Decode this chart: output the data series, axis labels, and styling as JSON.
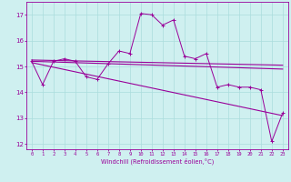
{
  "xlabel": "Windchill (Refroidissement éolien,°C)",
  "bg_color": "#cff0f0",
  "line_color": "#990099",
  "grid_color": "#aadddd",
  "xlim": [
    -0.5,
    23.5
  ],
  "ylim": [
    11.8,
    17.5
  ],
  "yticks": [
    12,
    13,
    14,
    15,
    16,
    17
  ],
  "xticks": [
    0,
    1,
    2,
    3,
    4,
    5,
    6,
    7,
    8,
    9,
    10,
    11,
    12,
    13,
    14,
    15,
    16,
    17,
    18,
    19,
    20,
    21,
    22,
    23
  ],
  "series1": [
    15.2,
    14.3,
    15.2,
    15.3,
    15.2,
    14.6,
    14.5,
    15.1,
    15.6,
    15.5,
    17.05,
    17.0,
    16.6,
    16.8,
    15.4,
    15.3,
    15.5,
    14.2,
    14.3,
    14.2,
    14.2,
    14.1,
    12.1,
    13.2
  ],
  "trend1_x": [
    0,
    23
  ],
  "trend1_y": [
    15.25,
    15.05
  ],
  "trend2_x": [
    0,
    23
  ],
  "trend2_y": [
    15.2,
    14.9
  ],
  "trend3_x": [
    0,
    23
  ],
  "trend3_y": [
    15.15,
    13.1
  ]
}
